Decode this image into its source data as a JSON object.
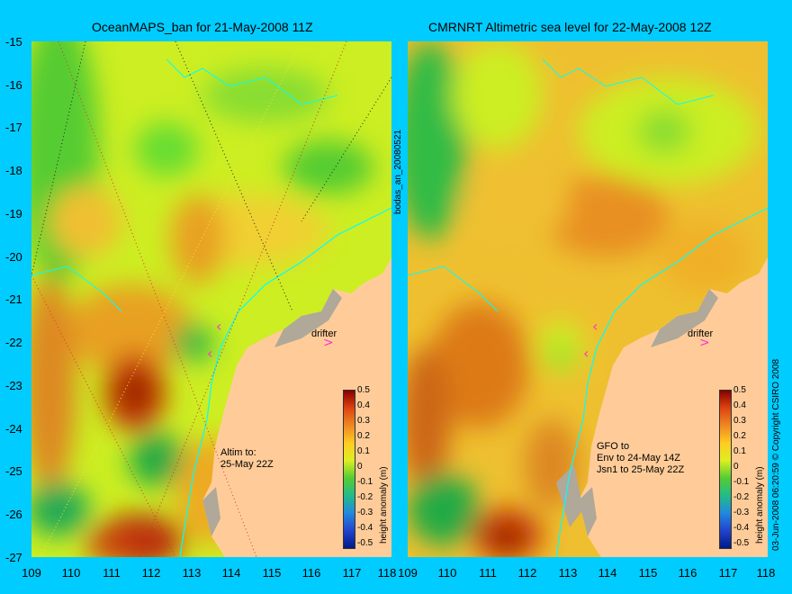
{
  "left_panel": {
    "title": "OceanMAPS_ban for 21-May-2008 11Z",
    "side_label": "bodas_an_20080521",
    "annotations": {
      "drifter": "drifter",
      "altim": "Altim to:\n25-May 22Z"
    }
  },
  "right_panel": {
    "title": "CMRNRT Altimetric sea level  for 22-May-2008 12Z",
    "side_label": "03-Jun-2008 06:20:59   © Copyright CSIRO 2008",
    "annotations": {
      "drifter": "drifter",
      "gfo": "GFO to\nEnv to 24-May 14Z\nJsn1 to 25-May 22Z"
    }
  },
  "y_ticks": [
    "-15",
    "-16",
    "-17",
    "-18",
    "-19",
    "-20",
    "-21",
    "-22",
    "-23",
    "-24",
    "-25",
    "-26",
    "-27"
  ],
  "x_ticks": [
    "109",
    "110",
    "111",
    "112",
    "113",
    "114",
    "115",
    "116",
    "117",
    "118"
  ],
  "colorbar": {
    "label": "height anomaly (m)",
    "ticks": [
      "0.5",
      "0.4",
      "0.3",
      "0.2",
      "0.1",
      "0",
      "-0.1",
      "-0.2",
      "-0.3",
      "-0.4",
      "-0.5"
    ]
  },
  "colors": {
    "background": "#00ccff",
    "land": "#ffcc99",
    "reef": "#b0a898",
    "coast": "#00ffff",
    "track_arrow": "#ff33cc"
  }
}
